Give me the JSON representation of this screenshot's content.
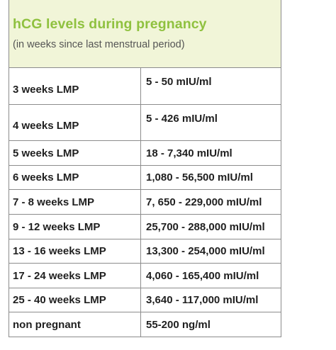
{
  "header": {
    "title": "hCG levels during pregnancy",
    "subtitle": "(in weeks since last menstrual period)"
  },
  "rows": [
    {
      "period": "3 weeks LMP",
      "level": "5 - 50 mIU/ml"
    },
    {
      "period": "4 weeks LMP",
      "level": "5 - 426 mIU/ml"
    },
    {
      "period": "5 weeks LMP",
      "level": "18 - 7,340 mIU/ml"
    },
    {
      "period": "6 weeks LMP",
      "level": "1,080 - 56,500 mIU/ml"
    },
    {
      "period": "7 - 8 weeks LMP",
      "level": "7, 650 - 229,000 mIU/ml"
    },
    {
      "period": "9 - 12 weeks LMP",
      "level": "25,700 - 288,000 mIU/ml"
    },
    {
      "period": "13 - 16 weeks LMP",
      "level": "13,300 - 254,000 mIU/ml"
    },
    {
      "period": "17 - 24 weeks LMP",
      "level": "4,060 - 165,400 mIU/ml"
    },
    {
      "period": "25 - 40 weeks LMP",
      "level": "3,640 - 117,000 mIU/ml"
    },
    {
      "period": "non pregnant",
      "level": "55-200 ng/ml"
    }
  ],
  "colors": {
    "header_bg": "#f1f5d8",
    "title": "#8fc13f",
    "border": "#8c8c8c"
  }
}
